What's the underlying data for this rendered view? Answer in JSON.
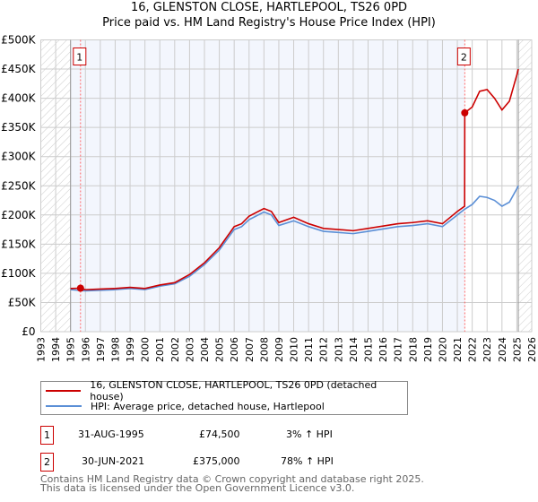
{
  "title": "16, GLENSTON CLOSE, HARTLEPOOL, TS26 0PD",
  "subtitle": "Price paid vs. HM Land Registry's House Price Index (HPI)",
  "chart_data": {
    "type": "line",
    "title": "16, GLENSTON CLOSE, HARTLEPOOL, TS26 0PD",
    "subtitle": "Price paid vs. HM Land Registry's House Price Index (HPI)",
    "xlim": [
      1993,
      2026
    ],
    "ylim": [
      0,
      500000
    ],
    "x_ticks": [
      "1993",
      "1994",
      "1995",
      "1996",
      "1997",
      "1998",
      "1999",
      "2000",
      "2001",
      "2002",
      "2003",
      "2004",
      "2005",
      "2006",
      "2007",
      "2008",
      "2009",
      "2010",
      "2011",
      "2012",
      "2013",
      "2014",
      "2015",
      "2016",
      "2017",
      "2018",
      "2019",
      "2020",
      "2021",
      "2022",
      "2023",
      "2024",
      "2025",
      "2026"
    ],
    "y_ticks": [
      {
        "v": 0,
        "label": "£0"
      },
      {
        "v": 50000,
        "label": "£50K"
      },
      {
        "v": 100000,
        "label": "£100K"
      },
      {
        "v": 150000,
        "label": "£150K"
      },
      {
        "v": 200000,
        "label": "£200K"
      },
      {
        "v": 250000,
        "label": "£250K"
      },
      {
        "v": 300000,
        "label": "£300K"
      },
      {
        "v": 350000,
        "label": "£350K"
      },
      {
        "v": 400000,
        "label": "£400K"
      },
      {
        "v": 450000,
        "label": "£450K"
      },
      {
        "v": 500000,
        "label": "£500K"
      }
    ],
    "grid": true,
    "series": [
      {
        "name": "16, GLENSTON CLOSE, HARTLEPOOL, TS26 0PD (detached house)",
        "color": "#cc0000",
        "x": [
          1995,
          1995.67,
          1996,
          1997,
          1998,
          1999,
          2000,
          2001,
          2002,
          2003,
          2004,
          2005,
          2006,
          2006.5,
          2007,
          2008,
          2008.5,
          2009,
          2010,
          2011,
          2012,
          2013,
          2014,
          2015,
          2016,
          2017,
          2018,
          2019,
          2020,
          2021,
          2021.49,
          2021.5,
          2022,
          2022.5,
          2023,
          2023.5,
          2024,
          2024.5,
          2025,
          2025.1
        ],
        "y": [
          74000,
          74500,
          72000,
          73000,
          74000,
          76000,
          74000,
          80000,
          84000,
          98000,
          118000,
          144000,
          180000,
          185000,
          198000,
          211000,
          206000,
          187000,
          196000,
          185000,
          177000,
          175000,
          173000,
          177000,
          181000,
          185000,
          187000,
          190000,
          185000,
          206000,
          215000,
          375000,
          385000,
          412000,
          415000,
          400000,
          380000,
          395000,
          440000,
          450000
        ]
      },
      {
        "name": "HPI: Average price, detached house, Hartlepool",
        "color": "#5b8fd6",
        "x": [
          1995,
          1996,
          1997,
          1998,
          1999,
          2000,
          2001,
          2002,
          2003,
          2004,
          2005,
          2006,
          2006.5,
          2007,
          2008,
          2008.5,
          2009,
          2010,
          2011,
          2012,
          2013,
          2014,
          2015,
          2016,
          2017,
          2018,
          2019,
          2020,
          2021,
          2021.5,
          2022,
          2022.5,
          2023,
          2023.5,
          2024,
          2024.5,
          2025,
          2025.1
        ],
        "y": [
          72000,
          70000,
          71000,
          72000,
          74000,
          72000,
          78000,
          82000,
          95000,
          115000,
          140000,
          175000,
          180000,
          192000,
          205000,
          200000,
          182000,
          190000,
          180000,
          172000,
          170000,
          168000,
          172000,
          176000,
          180000,
          182000,
          185000,
          180000,
          200000,
          210000,
          218000,
          232000,
          230000,
          225000,
          215000,
          222000,
          245000,
          250000
        ]
      }
    ],
    "sales": [
      {
        "label": "1",
        "x": 1995.67,
        "y": 74500
      },
      {
        "label": "2",
        "x": 2021.5,
        "y": 375000
      }
    ],
    "data_range": [
      1995,
      2025.1
    ],
    "legend": "below"
  },
  "legend": {
    "items": [
      "16, GLENSTON CLOSE, HARTLEPOOL, TS26 0PD (detached house)",
      "HPI: Average price, detached house, Hartlepool"
    ]
  },
  "table": [
    {
      "num": "1",
      "date": "31-AUG-1995",
      "price": "£74,500",
      "hpi": "3% ↑ HPI"
    },
    {
      "num": "2",
      "date": "30-JUN-2021",
      "price": "£375,000",
      "hpi": "78% ↑ HPI"
    }
  ],
  "footer": [
    "Contains HM Land Registry data © Crown copyright and database right 2025.",
    "This data is licensed under the Open Government Licence v3.0."
  ]
}
